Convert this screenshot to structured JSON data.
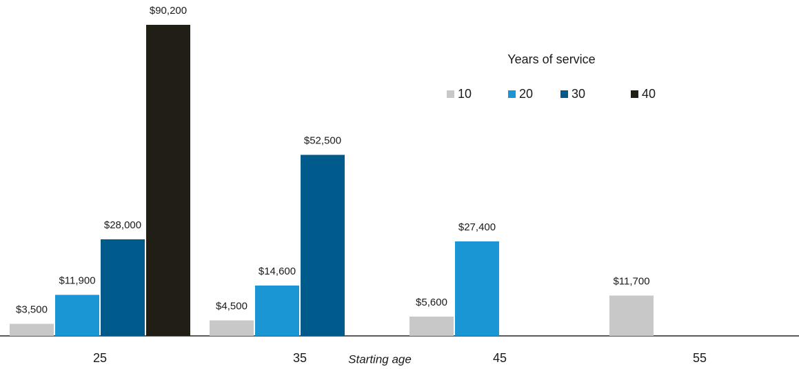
{
  "chart_data": {
    "type": "bar",
    "x_label": "Starting age",
    "legend_title": "Years of service",
    "categories": [
      "25",
      "35",
      "45",
      "55"
    ],
    "series": [
      {
        "name": "10",
        "color": "#c8c8c8",
        "values": [
          3500,
          4500,
          5600,
          11700
        ],
        "value_labels": [
          "$3,500",
          "$4,500",
          "$5,600",
          "$11,700"
        ]
      },
      {
        "name": "20",
        "color": "#1a96d4",
        "values": [
          11900,
          14600,
          27400,
          null
        ],
        "value_labels": [
          "$11,900",
          "$14,600",
          "$27,400",
          null
        ]
      },
      {
        "name": "30",
        "color": "#005a8c",
        "values": [
          28000,
          52500,
          null,
          null
        ],
        "value_labels": [
          "$28,000",
          "$52,500",
          null,
          null
        ]
      },
      {
        "name": "40",
        "color": "#211e16",
        "values": [
          90200,
          null,
          null,
          null
        ],
        "value_labels": [
          "$90,200",
          null,
          null,
          null
        ]
      }
    ],
    "legend_position": "upper right"
  }
}
